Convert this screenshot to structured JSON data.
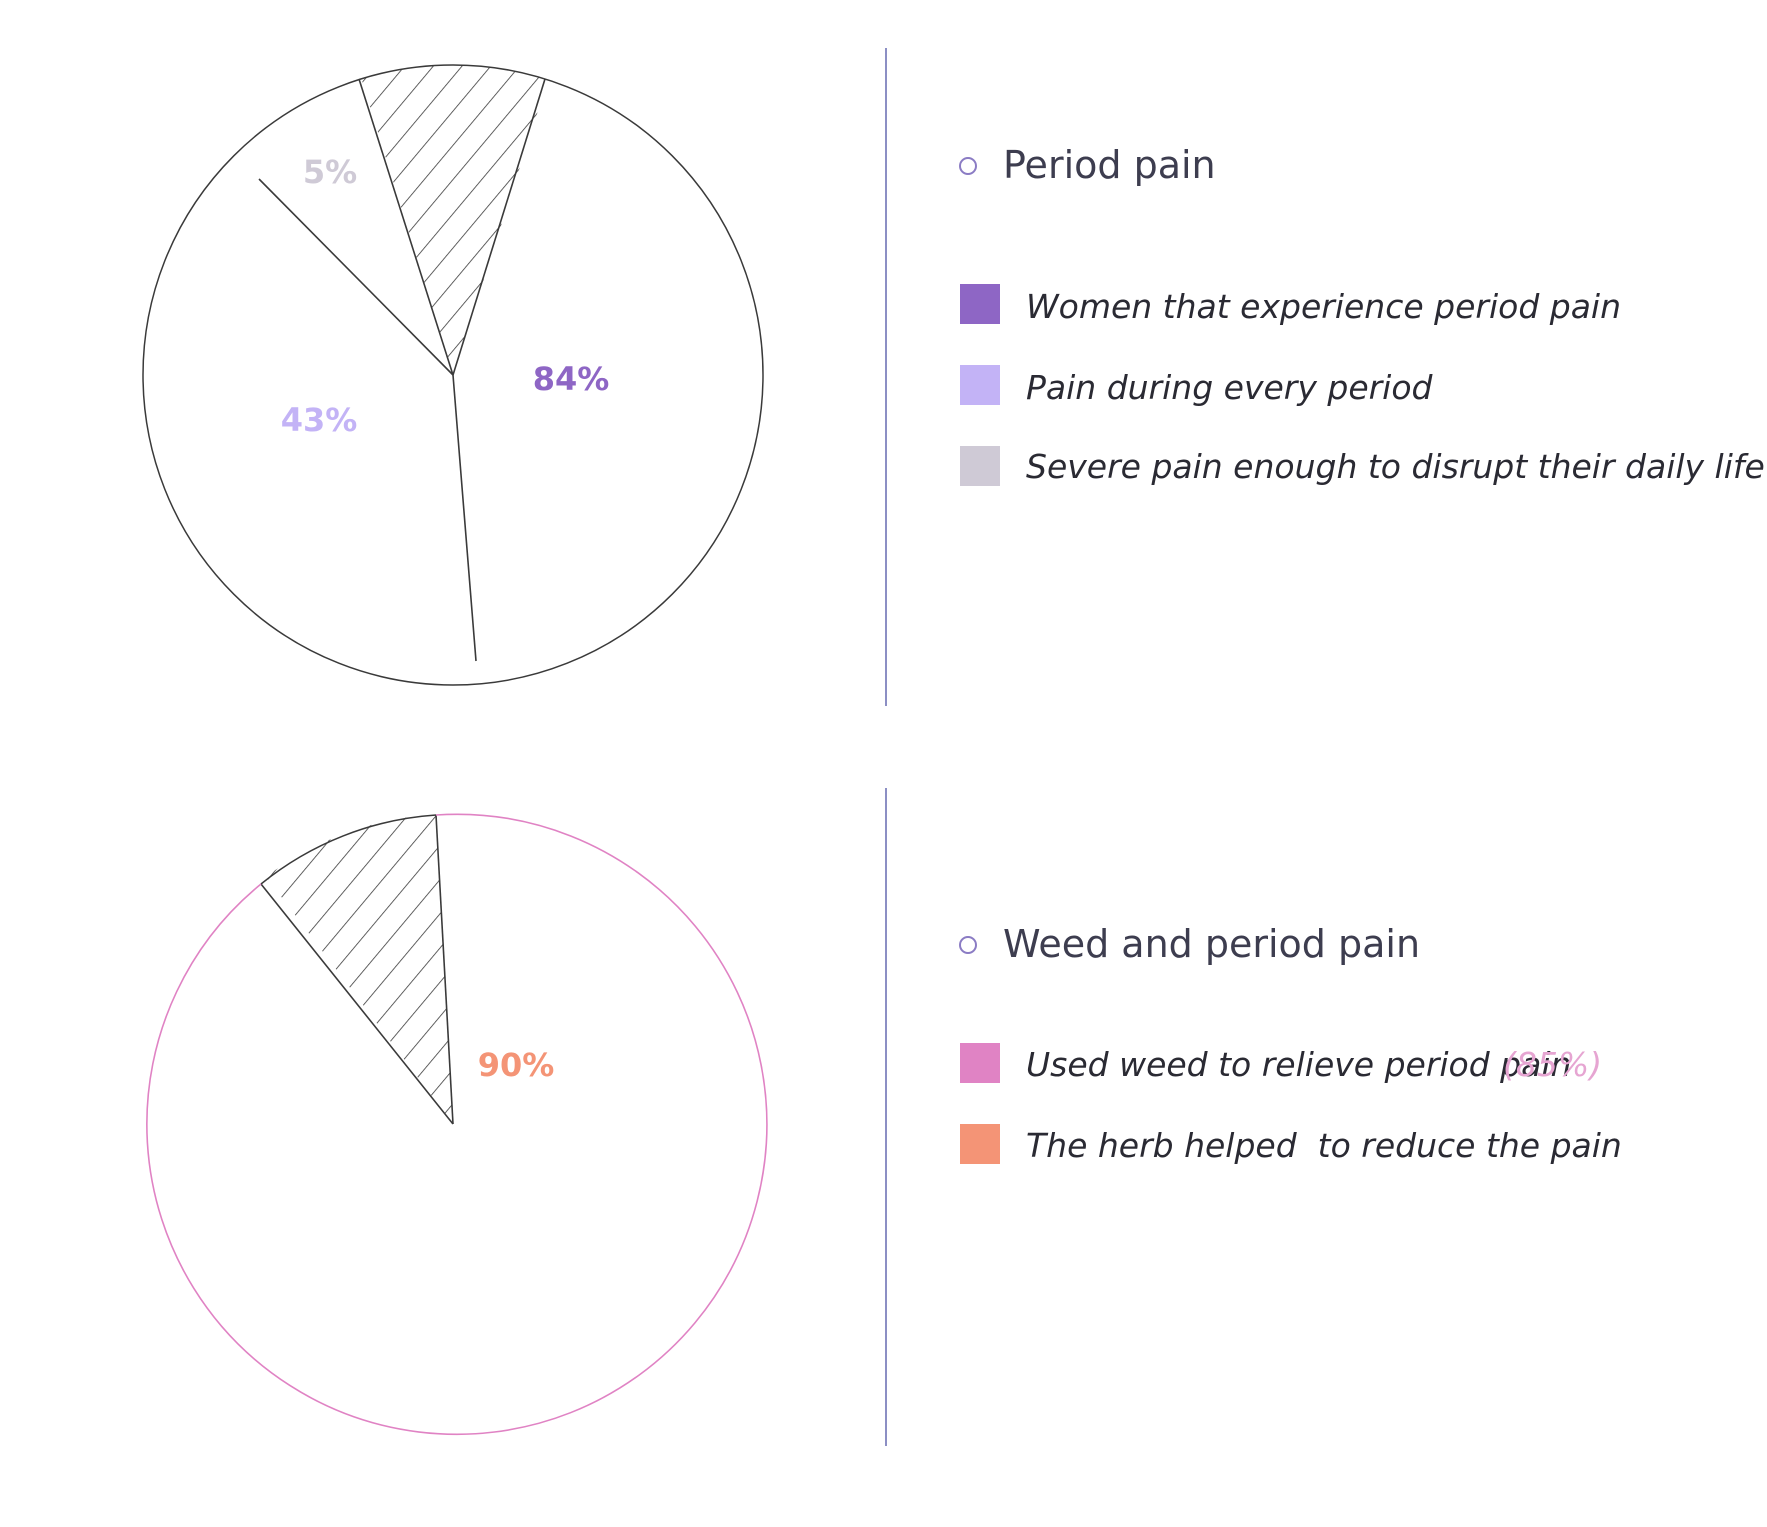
{
  "chart_data": [
    {
      "type": "pie",
      "title": "Period pain",
      "slices": [
        {
          "label": "Women that experience period pain",
          "value": 84,
          "display": "84%",
          "color": "#8e66c5"
        },
        {
          "label": "Pain during every period",
          "value": 43,
          "display": "43%",
          "color": "#c3b3f6"
        },
        {
          "label": "Severe pain enough to disrupt their daily life",
          "value": 5,
          "display": "5%",
          "color": "#cfcad6"
        }
      ]
    },
    {
      "type": "pie",
      "title": "Weed and period pain",
      "slices": [
        {
          "label": "Used weed to relieve period pain",
          "value": 85,
          "display": "(85%)",
          "color": "#e083c4"
        },
        {
          "label": "The herb helped  to reduce the pain",
          "value": 90,
          "display": "90%",
          "color": "#f49476"
        }
      ]
    }
  ],
  "colors": {
    "divider": "#8c8fc4",
    "outline": "#3a3a3a",
    "bullet": "#8b7cc4",
    "pink_outline": "#e083c4"
  }
}
